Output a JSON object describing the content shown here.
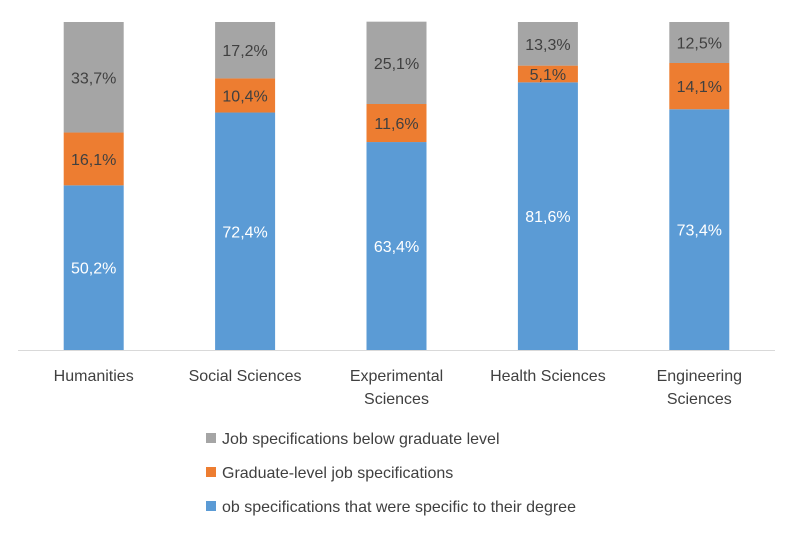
{
  "chart_data": {
    "type": "bar",
    "stacked": true,
    "percent_stacked": true,
    "categories": [
      "Humanities",
      "Social Sciences",
      "Experimental Sciences",
      "Health Sciences",
      "Engineering Sciences"
    ],
    "category_lines": [
      [
        "Humanities"
      ],
      [
        "Social Sciences"
      ],
      [
        "Experimental",
        "Sciences"
      ],
      [
        "Health Sciences"
      ],
      [
        "Engineering",
        "Sciences"
      ]
    ],
    "series": [
      {
        "name": "ob specifications that were specific to their degree",
        "color": "#5B9BD5",
        "label_color": "#FFFFFF",
        "values": [
          50.2,
          72.4,
          63.4,
          81.6,
          73.4
        ],
        "labels": [
          "50,2%",
          "72,4%",
          "63,4%",
          "81,6%",
          "73,4%"
        ]
      },
      {
        "name": "Graduate-level job specifications",
        "color": "#ED7D31",
        "label_color": "#404040",
        "values": [
          16.1,
          10.4,
          11.6,
          5.1,
          14.1
        ],
        "labels": [
          "16,1%",
          "10,4%",
          "11,6%",
          "5,1%",
          "14,1%"
        ]
      },
      {
        "name": "Job specifications below graduate level",
        "color": "#A5A5A5",
        "label_color": "#404040",
        "values": [
          33.7,
          17.2,
          25.1,
          13.3,
          12.5
        ],
        "labels": [
          "33,7%",
          "17,2%",
          "25,1%",
          "13,3%",
          "12,5%"
        ]
      }
    ],
    "legend_order": [
      2,
      1,
      0
    ],
    "legend_position": "bottom",
    "ylim": [
      0,
      100
    ],
    "title": "",
    "xlabel": "",
    "ylabel": "",
    "grid": false
  }
}
